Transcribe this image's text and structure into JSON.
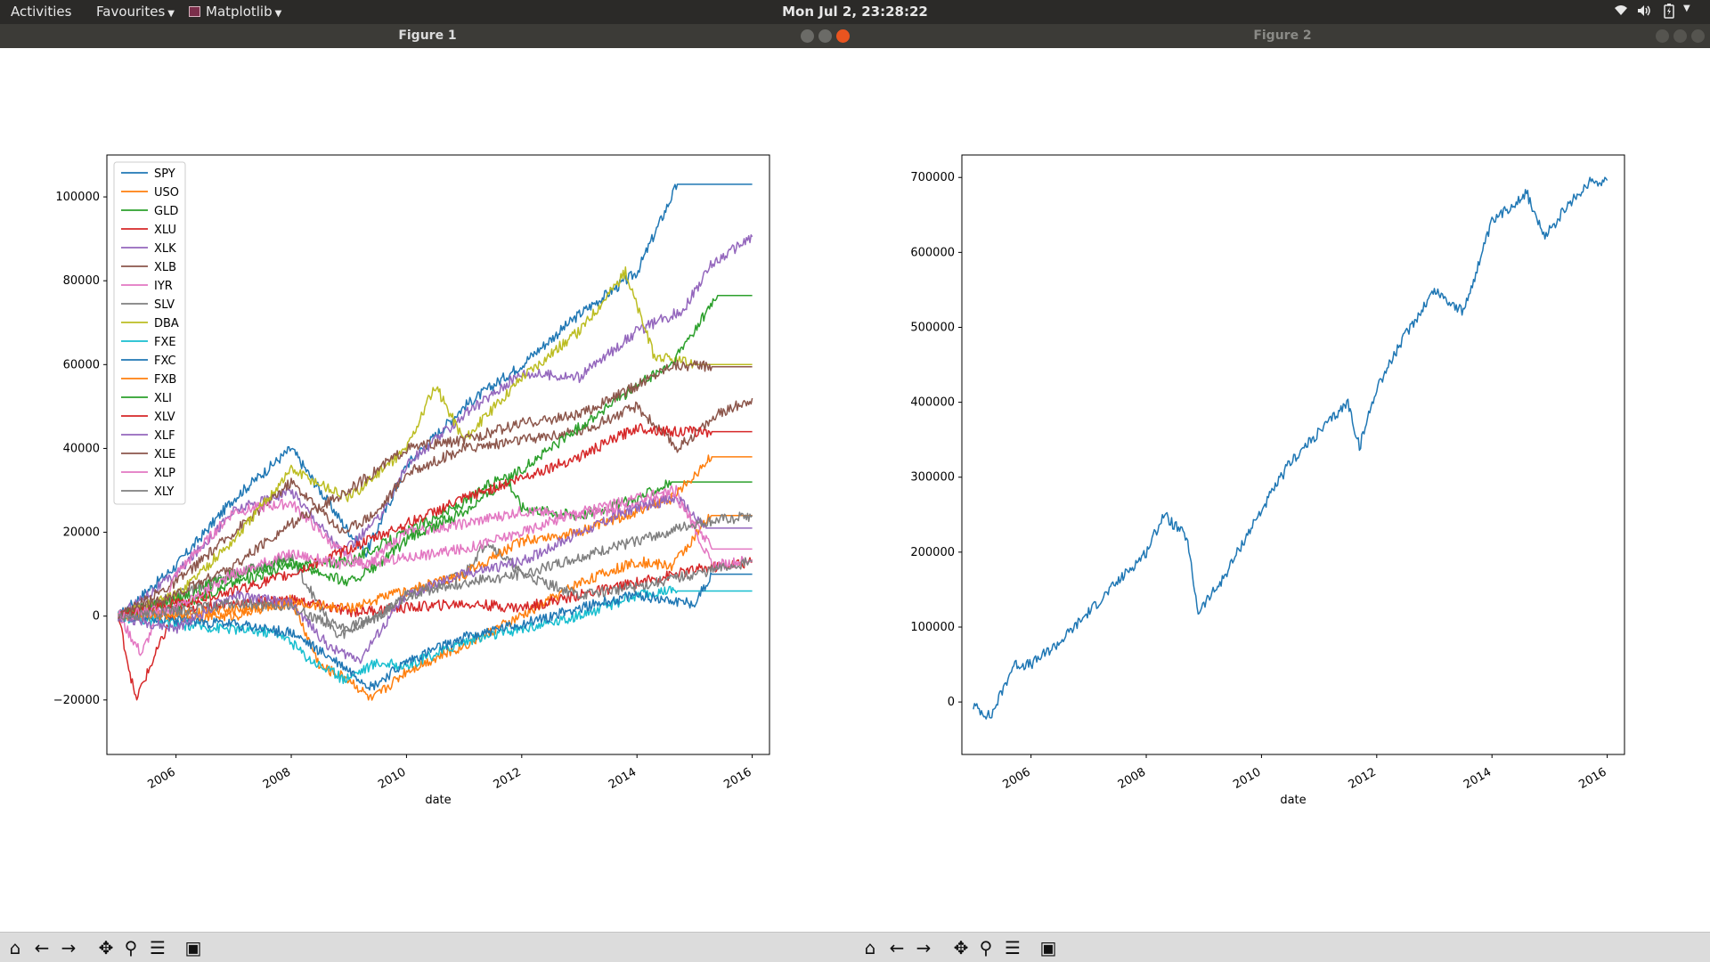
{
  "topbar": {
    "activities": "Activities",
    "favourites": "Favourites",
    "app_menu": "Matplotlib",
    "clock": "Mon Jul  2, 23:28:22",
    "tray_icons": [
      "wifi-icon",
      "volume-icon",
      "battery-icon",
      "power-menu-icon"
    ]
  },
  "windows": [
    {
      "title": "Figure 1",
      "active": true
    },
    {
      "title": "Figure 2",
      "active": false
    }
  ],
  "toolbar_buttons": [
    "home-icon",
    "back-icon",
    "forward-icon",
    "pan-icon",
    "zoom-icon",
    "configure-subplots-icon",
    "save-icon"
  ],
  "chart_data": [
    {
      "type": "line",
      "xlabel": "date",
      "ylabel": "",
      "title": "",
      "xlim": [
        2004.8,
        2016.3
      ],
      "ylim": [
        -33000,
        110000
      ],
      "xticks": [
        "2006",
        "2008",
        "2010",
        "2012",
        "2014",
        "2016"
      ],
      "yticks": [
        "−20000",
        "0",
        "20000",
        "40000",
        "60000",
        "80000",
        "100000"
      ],
      "legend_position": "upper-left",
      "series": [
        {
          "name": "SPY",
          "color": "#1f77b4",
          "x": [
            2005,
            2006,
            2007,
            2008,
            2008.9,
            2009.3,
            2010,
            2011,
            2012,
            2013,
            2014,
            2014.7,
            2016
          ],
          "y": [
            0,
            12000,
            28000,
            40000,
            22000,
            15000,
            36000,
            50000,
            60000,
            72000,
            82000,
            103000,
            103000
          ]
        },
        {
          "name": "USO",
          "color": "#ff7f0e",
          "x": [
            2005,
            2006,
            2007,
            2008,
            2008.5,
            2009,
            2009.4,
            2010,
            2011,
            2012,
            2013,
            2014,
            2014.6,
            2015.3,
            2016
          ],
          "y": [
            0,
            0,
            0,
            4000,
            -12000,
            -15000,
            -20000,
            -13000,
            -7000,
            0,
            8000,
            13000,
            12000,
            24000,
            24000
          ]
        },
        {
          "name": "GLD",
          "color": "#2ca02c",
          "x": [
            2005,
            2006,
            2007,
            2008,
            2009,
            2010,
            2011,
            2011.7,
            2012,
            2013,
            2014,
            2014.6,
            2016
          ],
          "y": [
            0,
            2000,
            8000,
            12000,
            13000,
            20000,
            27000,
            34000,
            26000,
            24000,
            28000,
            32000,
            32000
          ]
        },
        {
          "name": "XLU",
          "color": "#d62728",
          "x": [
            2005,
            2005.3,
            2006,
            2007,
            2008,
            2009,
            2010,
            2011,
            2012,
            2013,
            2014,
            2015,
            2016
          ],
          "y": [
            0,
            -20000,
            2000,
            3000,
            4000,
            1000,
            2000,
            3000,
            2000,
            5000,
            8000,
            11000,
            13000
          ]
        },
        {
          "name": "XLK",
          "color": "#9467bd",
          "x": [
            2005,
            2006,
            2007,
            2008,
            2008.9,
            2009.5,
            2010,
            2011,
            2012,
            2013,
            2014,
            2014.8,
            2015.3,
            2016
          ],
          "y": [
            0,
            10000,
            25000,
            30000,
            15000,
            23000,
            36000,
            48000,
            58000,
            57000,
            68000,
            73000,
            84000,
            90500
          ]
        },
        {
          "name": "XLB",
          "color": "#8c564b",
          "x": [
            2005,
            2006,
            2007,
            2008,
            2008.9,
            2009.5,
            2010,
            2011,
            2012,
            2013,
            2014,
            2014.7,
            2015.4,
            2016
          ],
          "y": [
            0,
            8000,
            20000,
            32000,
            20000,
            25000,
            34000,
            40000,
            42000,
            44000,
            50000,
            40000,
            48000,
            52000
          ]
        },
        {
          "name": "IYR",
          "color": "#e377c2",
          "x": [
            2005,
            2005.4,
            2006,
            2007,
            2008,
            2008.8,
            2009.3,
            2010,
            2011,
            2012,
            2013,
            2014,
            2014.7,
            2015.3,
            2016
          ],
          "y": [
            0,
            -9000,
            10000,
            25000,
            27000,
            16000,
            12000,
            20000,
            22000,
            25000,
            24000,
            26000,
            30000,
            12000,
            13500
          ]
        },
        {
          "name": "SLV",
          "color": "#7f7f7f",
          "x": [
            2005,
            2006,
            2007,
            2008,
            2008.8,
            2009.5,
            2010,
            2011,
            2011.4,
            2012,
            2013,
            2014,
            2015,
            2016
          ],
          "y": [
            0,
            5000,
            10000,
            14000,
            -5000,
            0,
            5000,
            10000,
            18000,
            10000,
            5000,
            7000,
            10000,
            13000
          ]
        },
        {
          "name": "DBA",
          "color": "#bcbd22",
          "x": [
            2005,
            2006,
            2007,
            2008,
            2009,
            2010,
            2010.5,
            2011,
            2012,
            2013,
            2013.8,
            2014.3,
            2015,
            2016
          ],
          "y": [
            0,
            5000,
            18000,
            35000,
            28000,
            40000,
            55000,
            42000,
            57000,
            68000,
            82000,
            62000,
            60000,
            60000
          ]
        },
        {
          "name": "FXE",
          "color": "#17becf",
          "x": [
            2005,
            2006,
            2007,
            2007.8,
            2008.3,
            2008.9,
            2009.5,
            2010,
            2011,
            2012,
            2013,
            2014,
            2014.7,
            2016
          ],
          "y": [
            0,
            -2000,
            -3000,
            -4000,
            -10000,
            -15000,
            -11000,
            -12000,
            -6000,
            -3000,
            0,
            5000,
            6000,
            6000
          ]
        },
        {
          "name": "FXC",
          "color": "#1f77b4",
          "x": [
            2005,
            2006,
            2007,
            2008,
            2008.9,
            2009.4,
            2010,
            2011,
            2012,
            2013,
            2014,
            2015,
            2015.3,
            2016
          ],
          "y": [
            0,
            -1000,
            -2000,
            -4000,
            -12000,
            -17000,
            -11000,
            -5000,
            -2000,
            2000,
            5000,
            3000,
            10000,
            10000
          ]
        },
        {
          "name": "FXB",
          "color": "#ff7f0e",
          "x": [
            2005,
            2006,
            2007,
            2008,
            2009,
            2010,
            2011,
            2012,
            2013,
            2014,
            2014.6,
            2015.3,
            2016
          ],
          "y": [
            0,
            500,
            1500,
            3000,
            2000,
            6000,
            10000,
            18000,
            20000,
            25000,
            28000,
            38000,
            38000
          ]
        },
        {
          "name": "XLI",
          "color": "#2ca02c",
          "x": [
            2005,
            2006,
            2007,
            2008,
            2009,
            2009.5,
            2010,
            2011,
            2012,
            2013,
            2014,
            2014.6,
            2015.4,
            2016
          ],
          "y": [
            0,
            4000,
            10000,
            13000,
            8000,
            12000,
            18000,
            25000,
            35000,
            45000,
            55000,
            60000,
            76500,
            76500
          ]
        },
        {
          "name": "XLV",
          "color": "#d62728",
          "x": [
            2005,
            2006,
            2007,
            2008,
            2009,
            2010,
            2011,
            2012,
            2013,
            2014,
            2014.6,
            2015.3,
            2016
          ],
          "y": [
            0,
            3000,
            6000,
            10000,
            16000,
            22000,
            28000,
            33000,
            38000,
            45000,
            44000,
            44000,
            44000
          ]
        },
        {
          "name": "XLF",
          "color": "#9467bd",
          "x": [
            2005,
            2006,
            2007,
            2008,
            2008.7,
            2009.2,
            2010,
            2011,
            2012,
            2013,
            2014,
            2014.7,
            2015.2,
            2016
          ],
          "y": [
            0,
            -3000,
            5000,
            3000,
            -8000,
            -10000,
            5000,
            10000,
            13000,
            20000,
            26000,
            28000,
            21000,
            21000
          ]
        },
        {
          "name": "XLE",
          "color": "#8c564b",
          "x": [
            2005,
            2006,
            2007,
            2008,
            2009,
            2010,
            2011,
            2012,
            2013,
            2014,
            2014.6,
            2015.3,
            2016
          ],
          "y": [
            0,
            5000,
            12000,
            22000,
            30000,
            40000,
            42000,
            46000,
            48000,
            55000,
            60000,
            59500,
            59500
          ]
        },
        {
          "name": "XLP",
          "color": "#e377c2",
          "x": [
            2005,
            2006,
            2007,
            2008,
            2009,
            2010,
            2011,
            2012,
            2013,
            2014,
            2014.6,
            2015.3,
            2016
          ],
          "y": [
            0,
            2000,
            10000,
            15000,
            12000,
            14000,
            16000,
            20000,
            25000,
            28000,
            30000,
            16000,
            16000
          ]
        },
        {
          "name": "XLY",
          "color": "#7f7f7f",
          "x": [
            2005,
            2006,
            2007,
            2008,
            2008.9,
            2009.5,
            2010,
            2011,
            2012,
            2013,
            2014,
            2015,
            2016
          ],
          "y": [
            0,
            1000,
            3000,
            2000,
            -3000,
            0,
            5000,
            8000,
            10000,
            14000,
            18000,
            22000,
            24000
          ]
        }
      ]
    },
    {
      "type": "line",
      "xlabel": "date",
      "ylabel": "",
      "title": "",
      "xlim": [
        2004.8,
        2016.3
      ],
      "ylim": [
        -70000,
        730000
      ],
      "xticks": [
        "2006",
        "2008",
        "2010",
        "2012",
        "2014",
        "2016"
      ],
      "yticks": [
        "0",
        "100000",
        "200000",
        "300000",
        "400000",
        "500000",
        "600000",
        "700000"
      ],
      "series": [
        {
          "name": "",
          "color": "#1f77b4",
          "x": [
            2005,
            2005.3,
            2005.7,
            2006,
            2006.5,
            2007,
            2007.5,
            2008,
            2008.3,
            2008.7,
            2008.9,
            2009.3,
            2009.8,
            2010.5,
            2011,
            2011.5,
            2011.7,
            2012,
            2012.5,
            2013,
            2013.5,
            2014,
            2014.6,
            2014.9,
            2015.3,
            2015.7,
            2016
          ],
          "y": [
            -5000,
            -20000,
            50000,
            50000,
            80000,
            120000,
            160000,
            200000,
            250000,
            220000,
            120000,
            160000,
            230000,
            320000,
            360000,
            400000,
            340000,
            420000,
            490000,
            550000,
            520000,
            640000,
            680000,
            620000,
            660000,
            695000,
            696000
          ]
        }
      ]
    }
  ]
}
